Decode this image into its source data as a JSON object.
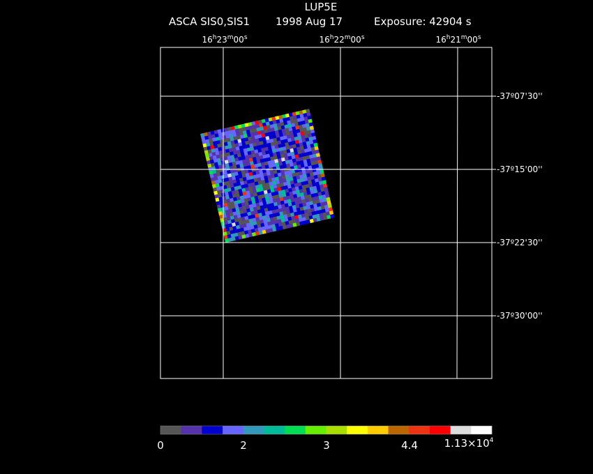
{
  "header": {
    "title": "LUP5E",
    "instrument": "ASCA SIS0,SIS1",
    "date": "1998 Aug 17",
    "exposure": "Exposure: 42904 s"
  },
  "ra_labels": [
    [
      "16",
      "h",
      "23",
      "m",
      "00",
      "s"
    ],
    [
      "16",
      "h",
      "22",
      "m",
      "00",
      "s"
    ],
    [
      "16",
      "h",
      "21",
      "m",
      "00",
      "s"
    ]
  ],
  "dec_labels": [
    "-37º07'30''",
    "-37º15'00''",
    "-37º22'30''",
    "-37º30'00''"
  ],
  "colorbar": {
    "colors": [
      "#555555",
      "#5533aa",
      "#0000cc",
      "#6666ff",
      "#3399bb",
      "#00bb99",
      "#00dd55",
      "#66ee00",
      "#aadd00",
      "#ffff00",
      "#ffcc00",
      "#bb6600",
      "#ee3311",
      "#ff0000",
      "#dddddd",
      "#ffffff"
    ],
    "labels": [
      "0",
      "2",
      "3",
      "4.4"
    ],
    "max_label": {
      "mantissa": "1.13×10",
      "exponent": "4"
    }
  }
}
